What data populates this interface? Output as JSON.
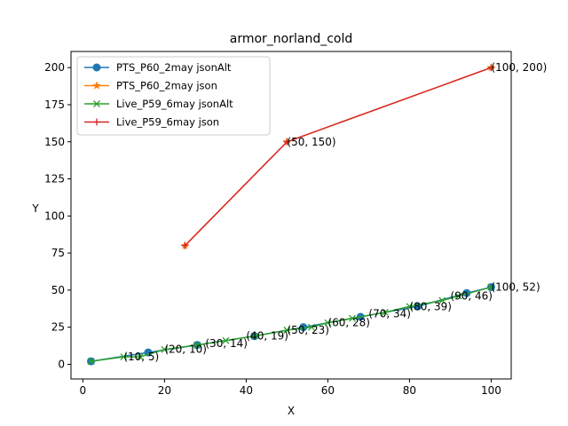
{
  "chart_data": {
    "type": "line",
    "title": "armor_norland_cold",
    "xlabel": "X",
    "ylabel": "Y",
    "xlim": [
      -2.9,
      104.9
    ],
    "ylim": [
      -9.9,
      210.9
    ],
    "xticks": [
      0,
      20,
      40,
      60,
      80,
      100
    ],
    "yticks": [
      0,
      25,
      50,
      75,
      100,
      125,
      150,
      175,
      200
    ],
    "legend_position": "upper-left",
    "grid": false,
    "series": [
      {
        "name": "PTS_P60_2may jsonAlt",
        "color": "#1f77b4",
        "marker": "circle",
        "x": [
          2,
          16,
          28,
          42,
          54,
          68,
          82,
          94,
          100
        ],
        "y": [
          2,
          8,
          13,
          19,
          25,
          32,
          39,
          48,
          52
        ]
      },
      {
        "name": "PTS_P60_2may json",
        "color": "#ff7f0e",
        "marker": "star",
        "x": [
          25,
          50,
          100
        ],
        "y": [
          80,
          150,
          200
        ]
      },
      {
        "name": "Live_P59_6may jsonAlt",
        "color": "#2ca02c",
        "marker": "x",
        "x": [
          2,
          10,
          14,
          20,
          28,
          35,
          42,
          50,
          56,
          60,
          66,
          74,
          80,
          88,
          92,
          100
        ],
        "y": [
          2,
          5,
          5,
          10,
          13,
          16,
          19,
          23,
          25,
          28,
          31,
          35,
          39,
          43,
          46,
          52
        ]
      },
      {
        "name": "Live_P59_6may json",
        "color": "#d62728",
        "marker": "plus",
        "x": [
          25,
          50,
          100
        ],
        "y": [
          80,
          150,
          200
        ]
      }
    ],
    "annotations": [
      {
        "text": "(10, 5)",
        "x": 10,
        "y": 5
      },
      {
        "text": "(20, 10)",
        "x": 20,
        "y": 10
      },
      {
        "text": "(30, 14)",
        "x": 30,
        "y": 14
      },
      {
        "text": "(40, 19)",
        "x": 40,
        "y": 19
      },
      {
        "text": "(50, 23)",
        "x": 50,
        "y": 23
      },
      {
        "text": "(60, 28)",
        "x": 60,
        "y": 28
      },
      {
        "text": "(70, 34)",
        "x": 70,
        "y": 34
      },
      {
        "text": "(80, 39)",
        "x": 80,
        "y": 39
      },
      {
        "text": "(90, 46)",
        "x": 90,
        "y": 46
      },
      {
        "text": "(100, 52)",
        "x": 100,
        "y": 52
      },
      {
        "text": "(50, 150)",
        "x": 50,
        "y": 150
      },
      {
        "text": "(100, 200)",
        "x": 100,
        "y": 200
      }
    ]
  }
}
